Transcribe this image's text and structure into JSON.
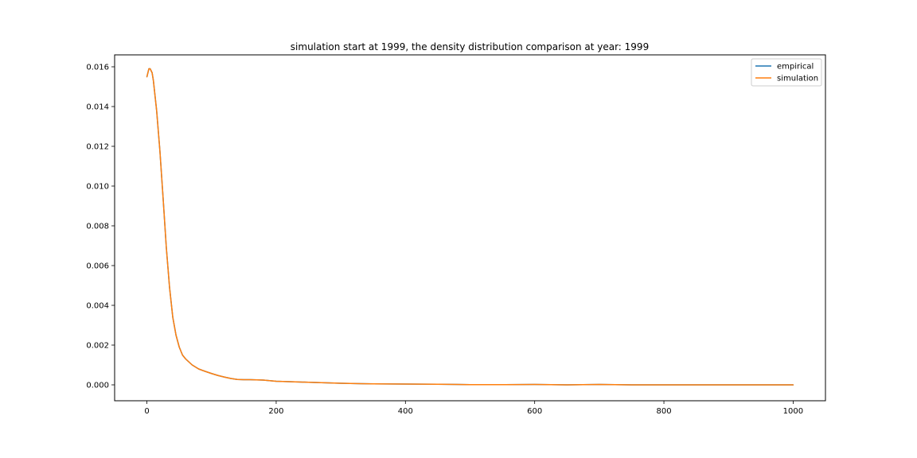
{
  "chart_data": {
    "type": "line",
    "title": "simulation start at 1999, the density distribution comparison at year: 1999",
    "xlabel": "",
    "ylabel": "",
    "xlim": [
      -50,
      1050
    ],
    "ylim": [
      -0.0008,
      0.0166
    ],
    "x_ticks": [
      0,
      200,
      400,
      600,
      800,
      1000
    ],
    "x_tick_labels": [
      "0",
      "200",
      "400",
      "600",
      "800",
      "1000"
    ],
    "y_ticks": [
      0.0,
      0.002,
      0.004,
      0.006,
      0.008,
      0.01,
      0.012,
      0.014,
      0.016
    ],
    "y_tick_labels": [
      "0.000",
      "0.002",
      "0.004",
      "0.006",
      "0.008",
      "0.010",
      "0.012",
      "0.014",
      "0.016"
    ],
    "grid": false,
    "legend_position": "top-right",
    "series": [
      {
        "name": "empirical",
        "color": "#1f77b4",
        "x": [
          0,
          3,
          5,
          8,
          10,
          12,
          15,
          20,
          25,
          30,
          35,
          40,
          45,
          50,
          55,
          60,
          70,
          80,
          90,
          100,
          110,
          120,
          130,
          140,
          150,
          160,
          170,
          180,
          190,
          200,
          220,
          250,
          280,
          300,
          330,
          350,
          400,
          450,
          480,
          500,
          550,
          600,
          650,
          700,
          750,
          800,
          850,
          900,
          950,
          1000
        ],
        "y": [
          0.0155,
          0.0159,
          0.0159,
          0.0157,
          0.0153,
          0.0147,
          0.0138,
          0.0118,
          0.0094,
          0.0069,
          0.0049,
          0.0034,
          0.0025,
          0.0019,
          0.0015,
          0.0013,
          0.001,
          0.0008,
          0.00068,
          0.00057,
          0.00047,
          0.00039,
          0.00032,
          0.00027,
          0.00026,
          0.00026,
          0.00025,
          0.00024,
          0.00021,
          0.00018,
          0.00016,
          0.00013,
          0.0001,
          8e-05,
          6e-05,
          5e-05,
          4e-05,
          3e-05,
          2e-05,
          1e-05,
          1e-05,
          2e-05,
          0.0,
          2e-05,
          0.0,
          0.0,
          0.0,
          0.0,
          0.0,
          0.0
        ]
      },
      {
        "name": "simulation",
        "color": "#ff7f0e",
        "x": [
          0,
          3,
          5,
          8,
          10,
          12,
          15,
          20,
          25,
          30,
          35,
          40,
          45,
          50,
          55,
          60,
          70,
          80,
          90,
          100,
          110,
          120,
          130,
          140,
          150,
          160,
          170,
          180,
          190,
          200,
          220,
          250,
          280,
          300,
          330,
          350,
          400,
          450,
          480,
          500,
          550,
          600,
          650,
          700,
          750,
          800,
          850,
          900,
          950,
          1000
        ],
        "y": [
          0.0155,
          0.0159,
          0.0159,
          0.0157,
          0.0153,
          0.0147,
          0.0138,
          0.0118,
          0.0094,
          0.0069,
          0.0049,
          0.0034,
          0.0025,
          0.0019,
          0.0015,
          0.0013,
          0.001,
          0.0008,
          0.00068,
          0.00057,
          0.00047,
          0.00039,
          0.00032,
          0.00027,
          0.00026,
          0.00026,
          0.00025,
          0.00024,
          0.00021,
          0.00018,
          0.00016,
          0.00013,
          0.0001,
          8e-05,
          6e-05,
          5e-05,
          4e-05,
          3e-05,
          2e-05,
          1e-05,
          1e-05,
          2e-05,
          0.0,
          2e-05,
          0.0,
          0.0,
          0.0,
          0.0,
          0.0,
          0.0
        ]
      }
    ]
  }
}
